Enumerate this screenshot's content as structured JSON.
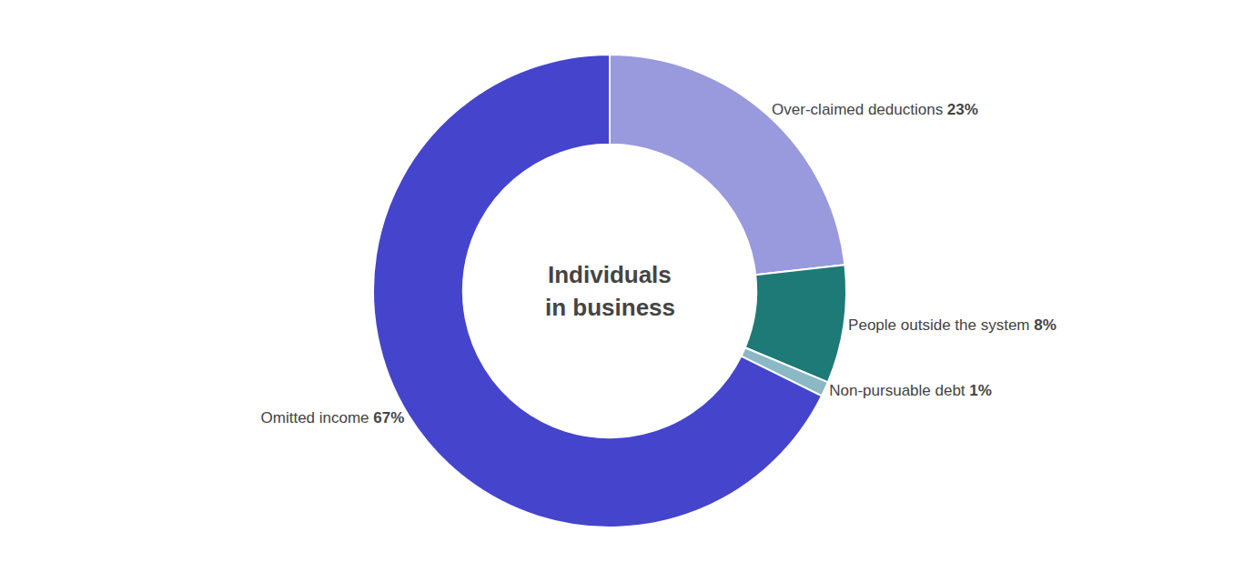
{
  "chart_data": {
    "type": "pie",
    "title": "Individuals",
    "subtitle": "in business",
    "categories": [
      "Over-claimed deductions",
      "People outside the system",
      "Non-pursuable debt",
      "Omitted income"
    ],
    "values": [
      23,
      8,
      1,
      67
    ],
    "value_labels": [
      "23%",
      "8%",
      "1%",
      "67%"
    ],
    "colors": [
      "#9999dd",
      "#1e7a76",
      "#8ab8c5",
      "#4444cc"
    ],
    "data_labels": true
  }
}
